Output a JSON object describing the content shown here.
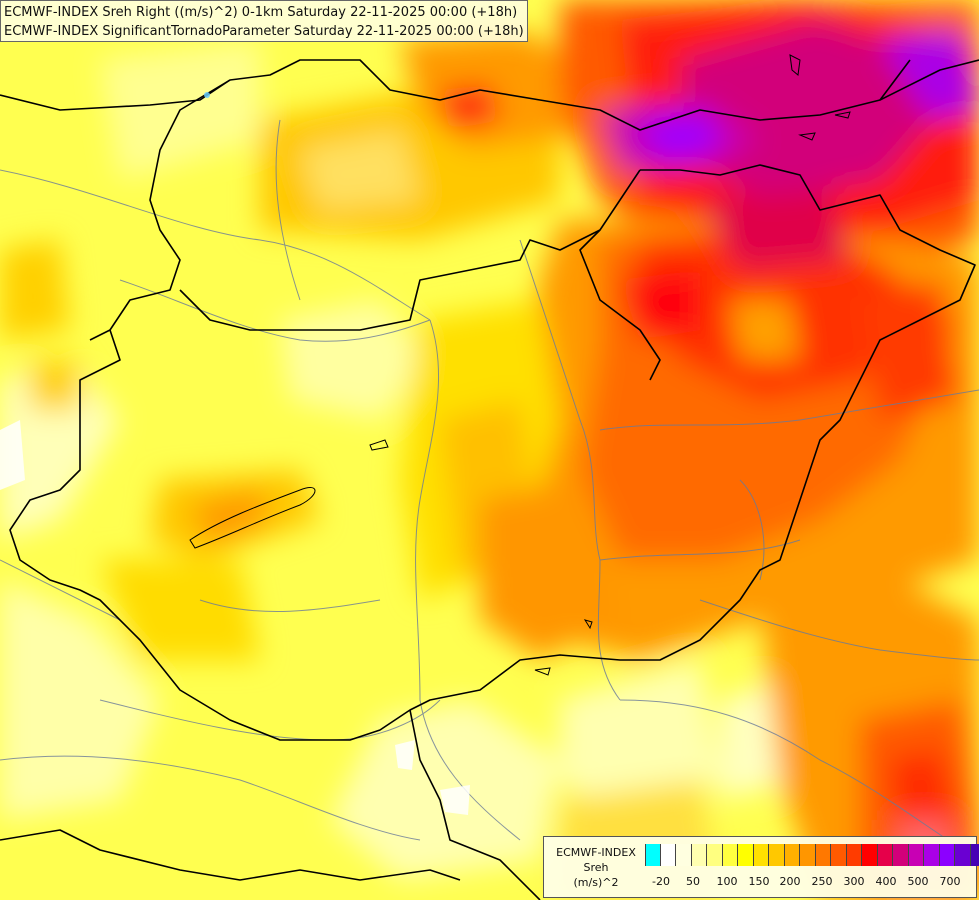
{
  "title": {
    "line1": "ECMWF-INDEX Sreh Right ((m/s)^2) 0-1km Saturday 22-11-2025 00:00 (+18h)",
    "line2": "ECMWF-INDEX SignificantTornadoParameter Saturday 22-11-2025 00:00 (+18h)"
  },
  "legend": {
    "source": "ECMWF-INDEX",
    "variable": "Sreh",
    "unit": "(m/s)^2",
    "colors": [
      "#00ffff",
      "#ffffff",
      "#ffffe0",
      "#ffffb0",
      "#ffff80",
      "#ffff40",
      "#ffff00",
      "#ffe000",
      "#ffc800",
      "#ffb000",
      "#ff9600",
      "#ff7800",
      "#ff5a00",
      "#ff3c00",
      "#ff0000",
      "#e6004a",
      "#d2007a",
      "#c800b4",
      "#aa00e6",
      "#8c00ff",
      "#6a00d2",
      "#4600b4",
      "#1e0096"
    ],
    "ticks": [
      "-20",
      "50",
      "100",
      "150",
      "200",
      "250",
      "300",
      "400",
      "500",
      "700"
    ]
  }
}
